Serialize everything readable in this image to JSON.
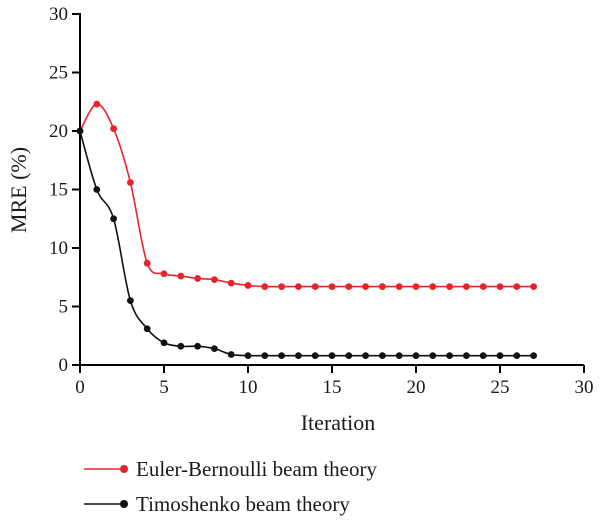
{
  "chart_data": {
    "type": "line",
    "title": "",
    "xlabel": "Iteration",
    "ylabel": "MRE (%)",
    "xlim": [
      0,
      30
    ],
    "ylim": [
      0,
      30
    ],
    "xticks": [
      0,
      5,
      10,
      15,
      20,
      25,
      30
    ],
    "yticks": [
      0,
      5,
      10,
      15,
      20,
      25,
      30
    ],
    "grid": false,
    "legend_position": "bottom",
    "series": [
      {
        "name": "Euler-Bernoulli beam theory",
        "color": "#e8242b",
        "x": [
          0,
          1,
          2,
          3,
          4,
          5,
          6,
          7,
          8,
          9,
          10,
          11,
          12,
          13,
          14,
          15,
          16,
          17,
          18,
          19,
          20,
          21,
          22,
          23,
          24,
          25,
          26,
          27
        ],
        "values": [
          20.0,
          22.3,
          20.2,
          15.6,
          8.7,
          7.8,
          7.6,
          7.4,
          7.3,
          7.0,
          6.8,
          6.7,
          6.7,
          6.7,
          6.7,
          6.7,
          6.7,
          6.7,
          6.7,
          6.7,
          6.7,
          6.7,
          6.7,
          6.7,
          6.7,
          6.7,
          6.7,
          6.7
        ]
      },
      {
        "name": "Timoshenko beam theory",
        "color": "#111111",
        "x": [
          0,
          1,
          2,
          3,
          4,
          5,
          6,
          7,
          8,
          9,
          10,
          11,
          12,
          13,
          14,
          15,
          16,
          17,
          18,
          19,
          20,
          21,
          22,
          23,
          24,
          25,
          26,
          27
        ],
        "values": [
          20.0,
          15.0,
          12.5,
          5.5,
          3.1,
          1.9,
          1.6,
          1.6,
          1.4,
          0.9,
          0.8,
          0.8,
          0.8,
          0.8,
          0.8,
          0.8,
          0.8,
          0.8,
          0.8,
          0.8,
          0.8,
          0.8,
          0.8,
          0.8,
          0.8,
          0.8,
          0.8,
          0.8
        ]
      }
    ]
  }
}
